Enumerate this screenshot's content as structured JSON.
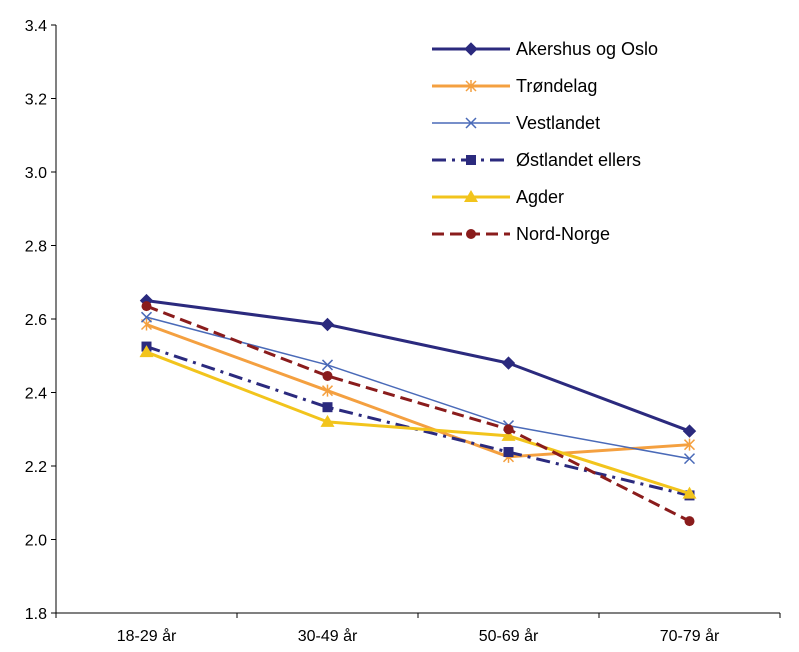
{
  "chart_data": {
    "type": "line",
    "title": "",
    "xlabel": "",
    "ylabel": "",
    "categories": [
      "18-29 år",
      "30-49 år",
      "50-69 år",
      "70-79 år"
    ],
    "ylim": [
      1.8,
      3.4
    ],
    "yticks": [
      "1.8",
      "2.0",
      "2.2",
      "2.4",
      "2.6",
      "2.8",
      "3.0",
      "3.2",
      "3.4"
    ],
    "grid": false,
    "legend_position": "top-right",
    "series": [
      {
        "name": "Akershus og Oslo",
        "values": [
          2.65,
          2.585,
          2.48,
          2.295
        ],
        "color": "#2b2a7e",
        "marker": "diamond",
        "dash": "solid"
      },
      {
        "name": "Trøndelag",
        "values": [
          2.585,
          2.405,
          2.225,
          2.258
        ],
        "color": "#f4a040",
        "marker": "asterisk",
        "dash": "solid"
      },
      {
        "name": "Vestlandet",
        "values": [
          2.605,
          2.475,
          2.31,
          2.22
        ],
        "color": "#4a6ab8",
        "marker": "x",
        "dash": "solid"
      },
      {
        "name": "Østlandet ellers",
        "values": [
          2.525,
          2.36,
          2.238,
          2.12
        ],
        "color": "#2b2a7e",
        "marker": "square",
        "dash": "dashdot"
      },
      {
        "name": "Agder",
        "values": [
          2.51,
          2.32,
          2.282,
          2.125
        ],
        "color": "#f2c41c",
        "marker": "triangle",
        "dash": "solid"
      },
      {
        "name": "Nord-Norge",
        "values": [
          2.635,
          2.445,
          2.3,
          2.05
        ],
        "color": "#8a1c1c",
        "marker": "circle",
        "dash": "dashed"
      }
    ]
  }
}
